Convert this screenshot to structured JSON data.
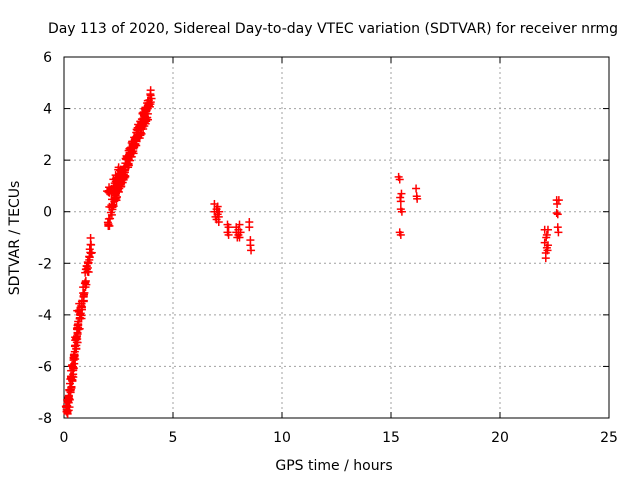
{
  "chart_data": {
    "type": "scatter",
    "title": "Day 113 of 2020, Sidereal Day-to-day VTEC variation (SDTVAR) for receiver nrmg",
    "xlabel": "GPS time / hours",
    "ylabel": "SDTVAR / TECUs",
    "xlim": [
      0,
      25
    ],
    "ylim": [
      -8,
      6
    ],
    "xticks": [
      0,
      5,
      10,
      15,
      20,
      25
    ],
    "yticks": [
      -8,
      -6,
      -4,
      -2,
      0,
      2,
      4,
      6
    ],
    "xtick_labels": [
      "0",
      "5",
      "10",
      "15",
      "20",
      "25"
    ],
    "ytick_labels": [
      "-8",
      "-6",
      "-4",
      "-2",
      "0",
      "2",
      "4",
      "6"
    ],
    "grid": true,
    "marker": "+",
    "series": [
      {
        "name": "SDTVAR",
        "color": "#ff0000",
        "segments": [
          {
            "x0": 0.08,
            "x1": 1.25,
            "y0": -8.0,
            "y1": -1.2,
            "n": 110,
            "spread": 0.35
          },
          {
            "x0": 0.15,
            "x1": 0.7,
            "y0": -8.0,
            "y1": -3.8,
            "n": 40,
            "spread": 0.4
          },
          {
            "x0": 2.0,
            "x1": 2.55,
            "y0": -0.6,
            "y1": 1.6,
            "n": 40,
            "spread": 0.35
          },
          {
            "x0": 2.0,
            "x1": 2.7,
            "y0": 0.7,
            "y1": 1.6,
            "n": 25,
            "spread": 0.25
          },
          {
            "x0": 2.3,
            "x1": 4.0,
            "y0": 0.5,
            "y1": 4.5,
            "n": 120,
            "spread": 0.3
          },
          {
            "x0": 2.6,
            "x1": 3.9,
            "y0": 1.4,
            "y1": 4.0,
            "n": 60,
            "spread": 0.3
          }
        ],
        "points": [
          [
            6.9,
            0.3
          ],
          [
            6.9,
            0.0
          ],
          [
            6.95,
            -0.2
          ],
          [
            7.0,
            0.1
          ],
          [
            7.0,
            -0.3
          ],
          [
            7.05,
            -0.1
          ],
          [
            7.05,
            0.2
          ],
          [
            7.1,
            -0.4
          ],
          [
            7.1,
            -0.2
          ],
          [
            7.12,
            0.0
          ],
          [
            7.5,
            -0.5
          ],
          [
            7.5,
            -0.8
          ],
          [
            7.55,
            -0.6
          ],
          [
            7.55,
            -0.9
          ],
          [
            7.9,
            -0.6
          ],
          [
            7.9,
            -0.8
          ],
          [
            7.95,
            -1.0
          ],
          [
            8.0,
            -0.7
          ],
          [
            8.0,
            -0.9
          ],
          [
            8.05,
            -0.5
          ],
          [
            8.05,
            -1.0
          ],
          [
            8.1,
            -0.8
          ],
          [
            8.5,
            -0.4
          ],
          [
            8.5,
            -0.6
          ],
          [
            8.55,
            -1.1
          ],
          [
            8.55,
            -1.3
          ],
          [
            8.58,
            -1.5
          ],
          [
            15.35,
            1.35
          ],
          [
            15.4,
            1.25
          ],
          [
            15.42,
            0.55
          ],
          [
            15.45,
            0.4
          ],
          [
            15.45,
            0.1
          ],
          [
            15.5,
            0.0
          ],
          [
            15.4,
            -0.8
          ],
          [
            15.45,
            -0.9
          ],
          [
            15.48,
            0.7
          ],
          [
            16.15,
            0.9
          ],
          [
            16.18,
            0.6
          ],
          [
            16.2,
            0.5
          ],
          [
            22.05,
            -0.7
          ],
          [
            22.05,
            -1.2
          ],
          [
            22.1,
            -1.6
          ],
          [
            22.1,
            -1.8
          ],
          [
            22.12,
            -1.0
          ],
          [
            22.15,
            -1.4
          ],
          [
            22.15,
            -0.9
          ],
          [
            22.2,
            -1.3
          ],
          [
            22.2,
            -0.7
          ],
          [
            22.18,
            -1.5
          ],
          [
            22.6,
            0.45
          ],
          [
            22.62,
            0.3
          ],
          [
            22.65,
            -0.1
          ],
          [
            22.65,
            -0.6
          ],
          [
            22.68,
            -0.8
          ],
          [
            22.7,
            0.45
          ],
          [
            22.6,
            -0.05
          ]
        ]
      }
    ]
  }
}
